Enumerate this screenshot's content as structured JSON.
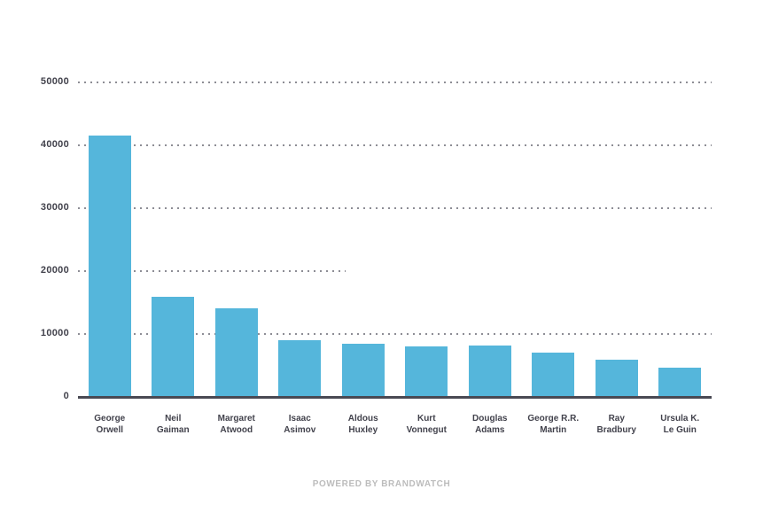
{
  "footer": {
    "label": "POWERED BY BRANDWATCH"
  },
  "chart_data": {
    "type": "bar",
    "title": "",
    "xlabel": "",
    "ylabel": "",
    "categories": [
      "George Orwell",
      "Neil Gaiman",
      "Margaret Atwood",
      "Isaac Asimov",
      "Aldous Huxley",
      "Kurt Vonnegut",
      "Douglas Adams",
      "George R.R. Martin",
      "Ray Bradbury",
      "Ursula K. Le Guin"
    ],
    "category_lines": [
      [
        "George",
        "Orwell"
      ],
      [
        "Neil",
        "Gaiman"
      ],
      [
        "Margaret",
        "Atwood"
      ],
      [
        "Isaac",
        "Asimov"
      ],
      [
        "Aldous",
        "Huxley"
      ],
      [
        "Kurt",
        "Vonnegut"
      ],
      [
        "Douglas",
        "Adams"
      ],
      [
        "George R.R.",
        "Martin"
      ],
      [
        "Ray",
        "Bradbury"
      ],
      [
        "Ursula K.",
        "Le Guin"
      ]
    ],
    "values": [
      41600,
      15900,
      14100,
      9000,
      8500,
      8000,
      8200,
      7100,
      5900,
      4700
    ],
    "ylim": [
      0,
      50000
    ],
    "yticks": [
      0,
      10000,
      20000,
      30000,
      40000,
      50000
    ],
    "grid": "horizontal-dotted",
    "legend": "none",
    "short_gridline_value": 20000,
    "colors": {
      "bar": "#55b6db",
      "axis": "#494953",
      "tick_label": "#42424c",
      "gridline": "#8d8d95",
      "footer": "#bcbcbc"
    }
  }
}
